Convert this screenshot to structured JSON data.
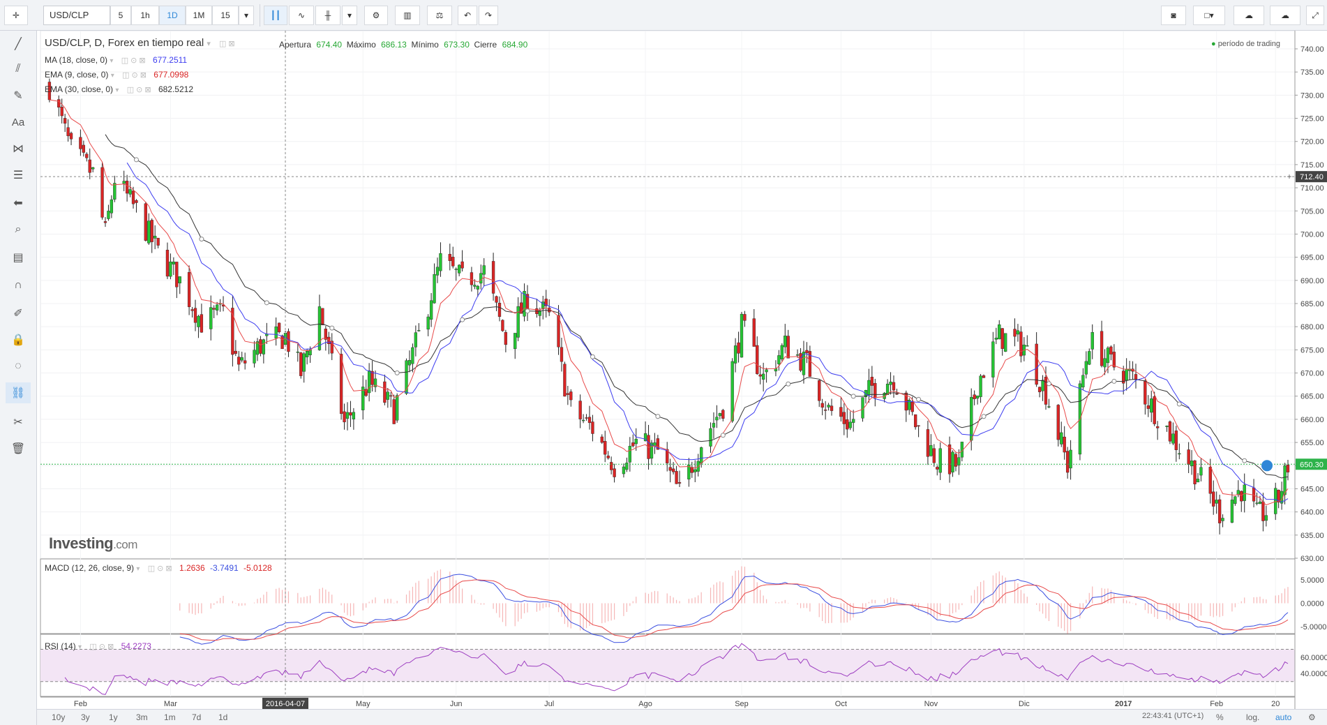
{
  "toolbar": {
    "symbol": "USD/CLP",
    "intervals": [
      "5",
      "1h",
      "1D",
      "1M",
      "15"
    ],
    "active_interval": "1D"
  },
  "legend": {
    "title": "USD/CLP, D, Forex en tiempo real",
    "open_label": "Apertura",
    "open": "674.40",
    "high_label": "Máximo",
    "high": "686.13",
    "low_label": "Mínimo",
    "low": "673.30",
    "close_label": "Cierre",
    "close": "684.90",
    "session": "período de trading",
    "ma18": {
      "label": "MA (18, close, 0)",
      "value": "677.2511"
    },
    "ema9": {
      "label": "EMA (9, close, 0)",
      "value": "677.0998"
    },
    "ema30": {
      "label": "EMA (30, close, 0)",
      "value": "682.5212"
    },
    "macd": {
      "label": "MACD (12, 26, close, 9)",
      "v1": "1.2636",
      "v2": "-3.7491",
      "v3": "-5.0128"
    },
    "rsi": {
      "label": "RSI (14)",
      "value": "54.2273"
    }
  },
  "price_badges": {
    "crosshair": "712.40",
    "last": "650.30"
  },
  "crosshair_date": "2016-04-07",
  "branding": {
    "name": "Investing",
    "suffix": ".com"
  },
  "ranges": [
    "10y",
    "3y",
    "1y",
    "3m",
    "1m",
    "7d",
    "1d"
  ],
  "footer": {
    "clock": "22:43:41 (UTC+1)",
    "percent": "%",
    "log": "log.",
    "auto": "auto"
  },
  "colors": {
    "up": "#26c334",
    "down": "#d92525",
    "ma18": "#3d3df0",
    "ema9": "#e84a4a",
    "ema30": "#333333",
    "macd_line": "#3b4fe0",
    "signal_line": "#e84a4a",
    "rsi_line": "#9c3cc0",
    "rsi_band": "#f3e5f5",
    "last_price": "#2db34a"
  },
  "chart_data": {
    "type": "candlestick",
    "price_axis": {
      "min": 630,
      "max": 740,
      "step": 5
    },
    "x_labels": [
      "Feb",
      "Mar",
      "2016-04-07",
      "May",
      "Jun",
      "Jul",
      "Ago",
      "Sep",
      "Oct",
      "Nov",
      "Dic",
      "2017",
      "Feb",
      "20"
    ],
    "price_path": [
      [
        "2016-01-22",
        732
      ],
      [
        "2016-01-29",
        718
      ],
      [
        "2016-02-05",
        713
      ],
      [
        "2016-02-09",
        700
      ],
      [
        "2016-02-12",
        712
      ],
      [
        "2016-02-19",
        705
      ],
      [
        "2016-02-26",
        696
      ],
      [
        "2016-03-04",
        690
      ],
      [
        "2016-03-11",
        681
      ],
      [
        "2016-03-18",
        683
      ],
      [
        "2016-03-23",
        671
      ],
      [
        "2016-03-30",
        676
      ],
      [
        "2016-04-07",
        678
      ],
      [
        "2016-04-12",
        670
      ],
      [
        "2016-04-18",
        684
      ],
      [
        "2016-04-26",
        659
      ],
      [
        "2016-05-04",
        668
      ],
      [
        "2016-05-12",
        662
      ],
      [
        "2016-05-20",
        678
      ],
      [
        "2016-05-27",
        694
      ],
      [
        "2016-06-03",
        690
      ],
      [
        "2016-06-10",
        692
      ],
      [
        "2016-06-17",
        677
      ],
      [
        "2016-06-24",
        686
      ],
      [
        "2016-07-01",
        682
      ],
      [
        "2016-07-08",
        662
      ],
      [
        "2016-07-15",
        658
      ],
      [
        "2016-07-22",
        650
      ],
      [
        "2016-07-29",
        655
      ],
      [
        "2016-08-05",
        653
      ],
      [
        "2016-08-12",
        644
      ],
      [
        "2016-08-19",
        655
      ],
      [
        "2016-08-26",
        663
      ],
      [
        "2016-09-01",
        680
      ],
      [
        "2016-09-08",
        669
      ],
      [
        "2016-09-15",
        676
      ],
      [
        "2016-09-22",
        672
      ],
      [
        "2016-09-29",
        662
      ],
      [
        "2016-10-06",
        659
      ],
      [
        "2016-10-13",
        667
      ],
      [
        "2016-10-20",
        669
      ],
      [
        "2016-10-27",
        659
      ],
      [
        "2016-11-03",
        651
      ],
      [
        "2016-11-10",
        650
      ],
      [
        "2016-11-16",
        668
      ],
      [
        "2016-11-23",
        678
      ],
      [
        "2016-12-01",
        676
      ],
      [
        "2016-12-08",
        666
      ],
      [
        "2016-12-15",
        650
      ],
      [
        "2016-12-22",
        677
      ],
      [
        "2016-12-29",
        672
      ],
      [
        "2017-01-05",
        669
      ],
      [
        "2017-01-12",
        662
      ],
      [
        "2017-01-19",
        655
      ],
      [
        "2017-01-26",
        648
      ],
      [
        "2017-02-02",
        640
      ],
      [
        "2017-02-09",
        645
      ],
      [
        "2017-02-14",
        639
      ],
      [
        "2017-02-17",
        640
      ],
      [
        "2017-02-21",
        643
      ],
      [
        "2017-02-24",
        650
      ]
    ],
    "macd_axis": {
      "ticks": [
        "5.0000",
        "0.0000",
        "-5.0000"
      ]
    },
    "rsi_axis": {
      "ticks": [
        "60.0000",
        "40.0000"
      ],
      "band": [
        30,
        70
      ]
    }
  }
}
